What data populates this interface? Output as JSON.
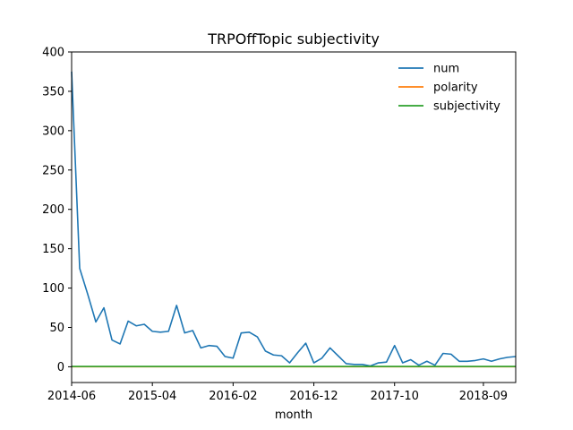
{
  "chart_data": {
    "type": "line",
    "title": "TRPOffTopic subjectivity",
    "xlabel": "month",
    "ylabel": "",
    "xlim": [
      "2014-06",
      "2019-01"
    ],
    "ylim": [
      -20,
      400
    ],
    "yticks": [
      0,
      50,
      100,
      150,
      200,
      250,
      300,
      350,
      400
    ],
    "xticks": [
      "2014-06",
      "2015-04",
      "2016-02",
      "2016-12",
      "2017-10",
      "2018-09"
    ],
    "grid": false,
    "legend_position": "top-right",
    "x": [
      "2014-06",
      "2014-07",
      "2014-08",
      "2014-09",
      "2014-10",
      "2014-11",
      "2014-12",
      "2015-01",
      "2015-02",
      "2015-03",
      "2015-04",
      "2015-05",
      "2015-06",
      "2015-07",
      "2015-08",
      "2015-09",
      "2015-10",
      "2015-11",
      "2015-12",
      "2016-01",
      "2016-02",
      "2016-03",
      "2016-04",
      "2016-05",
      "2016-06",
      "2016-07",
      "2016-08",
      "2016-09",
      "2016-10",
      "2016-11",
      "2016-12",
      "2017-01",
      "2017-02",
      "2017-03",
      "2017-04",
      "2017-05",
      "2017-06",
      "2017-07",
      "2017-08",
      "2017-09",
      "2017-10",
      "2017-11",
      "2017-12",
      "2018-01",
      "2018-02",
      "2018-03",
      "2018-04",
      "2018-05",
      "2018-06",
      "2018-07",
      "2018-08",
      "2018-09",
      "2018-10",
      "2018-11",
      "2018-12",
      "2019-01"
    ],
    "series": [
      {
        "name": "num",
        "color": "#1f77b4",
        "values": [
          375,
          125,
          92,
          57,
          75,
          34,
          29,
          58,
          52,
          54,
          45,
          44,
          45,
          78,
          43,
          46,
          24,
          27,
          26,
          13,
          11,
          43,
          44,
          38,
          20,
          15,
          14,
          5,
          18,
          30,
          5,
          11,
          24,
          14,
          4,
          3,
          3,
          1,
          5,
          6,
          27,
          5,
          9,
          2,
          7,
          2,
          17,
          16,
          7,
          7,
          8,
          10,
          7,
          10,
          12,
          13
        ]
      },
      {
        "name": "polarity",
        "color": "#ff7f0e",
        "values": [
          0.1,
          0.1,
          0.1,
          0.1,
          0.1,
          0.1,
          0.1,
          0.1,
          0.1,
          0.1,
          0.1,
          0.1,
          0.1,
          0.1,
          0.1,
          0.1,
          0.1,
          0.1,
          0.1,
          0.1,
          0.1,
          0.1,
          0.1,
          0.1,
          0.1,
          0.1,
          0.1,
          0.1,
          0.1,
          0.1,
          0.1,
          0.1,
          0.1,
          0.1,
          0.1,
          0.1,
          0.1,
          0.1,
          0.1,
          0.1,
          0.1,
          0.1,
          0.1,
          0.1,
          0.1,
          0.1,
          0.1,
          0.1,
          0.1,
          0.1,
          0.1,
          0.1,
          0.1,
          0.1,
          0.1,
          0.1
        ]
      },
      {
        "name": "subjectivity",
        "color": "#2ca02c",
        "values": [
          0.4,
          0.4,
          0.4,
          0.4,
          0.4,
          0.4,
          0.4,
          0.4,
          0.4,
          0.4,
          0.4,
          0.4,
          0.4,
          0.4,
          0.4,
          0.4,
          0.4,
          0.4,
          0.4,
          0.4,
          0.4,
          0.4,
          0.4,
          0.4,
          0.4,
          0.4,
          0.4,
          0.4,
          0.4,
          0.4,
          0.4,
          0.4,
          0.4,
          0.4,
          0.4,
          0.4,
          0.4,
          0.4,
          0.4,
          0.4,
          0.4,
          0.4,
          0.4,
          0.4,
          0.4,
          0.4,
          0.4,
          0.4,
          0.4,
          0.4,
          0.4,
          0.4,
          0.4,
          0.4,
          0.4,
          0.4
        ]
      }
    ]
  }
}
